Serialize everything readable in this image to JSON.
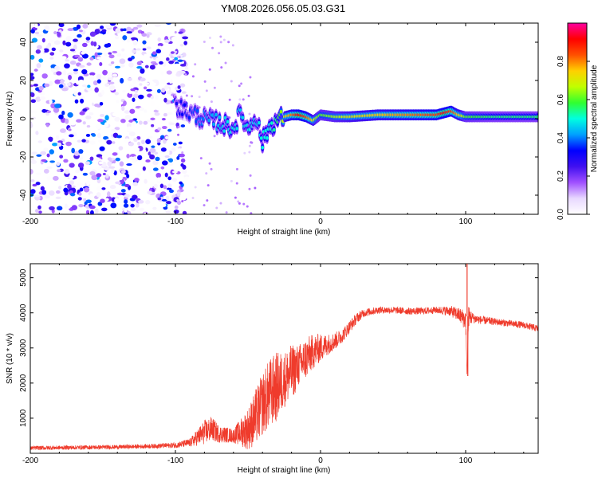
{
  "title": "YM08.2026.056.05.03.G31",
  "chart_data": [
    {
      "type": "heatmap",
      "name": "spectrogram",
      "xlabel": "Height of straight line (km)",
      "ylabel": "Frequency (Hz)",
      "xlim": [
        -200,
        150
      ],
      "ylim": [
        -50,
        50
      ],
      "xticks": [
        -200,
        -100,
        0,
        100
      ],
      "yticks": [
        -40,
        -20,
        0,
        20,
        40
      ],
      "colorbar": {
        "label": "Normalized spectral amplitude",
        "range": [
          0,
          1
        ],
        "ticks": [
          "0.0",
          "0.2",
          "0.4",
          "0.6",
          "0.8"
        ],
        "tick_values": [
          0,
          0.2,
          0.4,
          0.6,
          0.8
        ],
        "colors": [
          "#ffffff",
          "#e8d8ff",
          "#a050ff",
          "#4010f0",
          "#0000ff",
          "#00a0ff",
          "#00ffe0",
          "#30ff30",
          "#c0ff00",
          "#ffd000",
          "#ff5000",
          "#ff0000",
          "#ff00a0"
        ]
      },
      "ridge": {
        "x": [
          -100,
          -90,
          -80,
          -70,
          -60,
          -55,
          -50,
          -45,
          -40,
          -35,
          -30,
          -25,
          -20,
          -15,
          -10,
          -5,
          0,
          10,
          20,
          40,
          60,
          80,
          85,
          90,
          95,
          100,
          120,
          150
        ],
        "freq": [
          7,
          3,
          0,
          -2,
          -5,
          3,
          -6,
          2,
          -12,
          -4,
          -1,
          1,
          2,
          2,
          1,
          -1,
          2,
          1,
          1,
          2,
          2,
          2,
          3,
          4,
          2,
          1,
          1,
          1
        ],
        "amp": [
          0.3,
          0.35,
          0.4,
          0.45,
          0.5,
          0.45,
          0.5,
          0.45,
          0.5,
          0.5,
          0.55,
          0.7,
          0.8,
          0.9,
          0.85,
          0.7,
          0.6,
          0.65,
          0.7,
          0.75,
          0.8,
          0.85,
          0.9,
          0.85,
          0.75,
          0.6,
          0.55,
          0.55
        ]
      },
      "noise_region_x": [
        -200,
        -100
      ]
    },
    {
      "type": "line",
      "name": "snr",
      "xlabel": "Height of straight line (km)",
      "ylabel": "SNR (10 * v/v)",
      "xlim": [
        -200,
        150
      ],
      "ylim": [
        0,
        5400
      ],
      "xticks": [
        -200,
        -100,
        0,
        100
      ],
      "yticks": [
        1000,
        2000,
        3000,
        4000,
        5000
      ],
      "color": "#ef3b2c",
      "series": [
        {
          "name": "SNR",
          "x": [
            -200,
            -180,
            -160,
            -140,
            -120,
            -100,
            -90,
            -80,
            -75,
            -70,
            -60,
            -50,
            -45,
            -40,
            -35,
            -30,
            -25,
            -20,
            -15,
            -10,
            -5,
            0,
            5,
            10,
            15,
            20,
            25,
            30,
            40,
            50,
            60,
            70,
            80,
            90,
            95,
            100,
            101,
            102,
            105,
            110,
            120,
            130,
            140,
            150
          ],
          "y": [
            150,
            160,
            170,
            180,
            200,
            230,
            300,
            600,
            700,
            550,
            500,
            700,
            1000,
            1400,
            1700,
            1900,
            2100,
            2300,
            2500,
            2700,
            2900,
            3000,
            3100,
            3200,
            3350,
            3600,
            3850,
            4000,
            4080,
            4080,
            4050,
            4050,
            4080,
            4050,
            3950,
            3800,
            2200,
            3900,
            3850,
            3800,
            3750,
            3700,
            3650,
            3550
          ],
          "noise": [
            60,
            60,
            60,
            60,
            60,
            80,
            120,
            350,
            350,
            250,
            200,
            600,
            800,
            900,
            1000,
            1000,
            800,
            800,
            600,
            600,
            500,
            400,
            300,
            250,
            200,
            180,
            150,
            120,
            100,
            100,
            100,
            100,
            100,
            150,
            200,
            300,
            0,
            300,
            150,
            120,
            100,
            100,
            100,
            100
          ],
          "peaks": [
            {
              "x": 101,
              "y": 5400
            },
            {
              "x": 101.5,
              "y": 2200
            }
          ]
        }
      ]
    }
  ]
}
